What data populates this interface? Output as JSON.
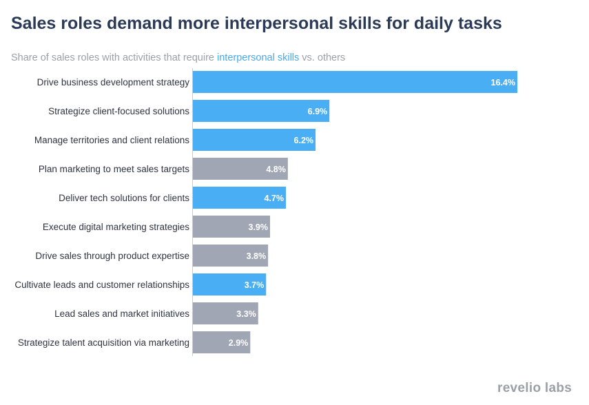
{
  "header": {
    "title": "Sales roles demand more interpersonal skills for daily tasks",
    "subtitle_prefix": "Share of sales roles with activities that require ",
    "subtitle_highlight": "interpersonal skills",
    "subtitle_middle": " vs. ",
    "subtitle_suffix": "others"
  },
  "brand": {
    "logo_text": "revelio labs"
  },
  "colors": {
    "interpersonal": "#4aaef5",
    "others": "#a1a6b4",
    "title": "#2b3a57",
    "highlight": "#4aa8f0"
  },
  "chart_data": {
    "type": "bar",
    "orientation": "horizontal",
    "categories": [
      "Drive business development strategy",
      "Strategize client-focused solutions",
      "Manage territories and client relations",
      "Plan marketing to meet sales targets",
      "Deliver tech solutions for clients",
      "Execute digital marketing strategies",
      "Drive sales through product expertise",
      "Cultivate leads and customer relationships",
      "Lead sales and market initiatives",
      "Strategize talent acquisition via marketing"
    ],
    "values": [
      16.4,
      6.9,
      6.2,
      4.8,
      4.7,
      3.9,
      3.8,
      3.7,
      3.3,
      2.9
    ],
    "value_labels": [
      "16.4%",
      "6.9%",
      "6.2%",
      "4.8%",
      "4.7%",
      "3.9%",
      "3.8%",
      "3.7%",
      "3.3%",
      "2.9%"
    ],
    "groups": [
      "interpersonal",
      "interpersonal",
      "interpersonal",
      "others",
      "interpersonal",
      "others",
      "others",
      "interpersonal",
      "others",
      "others"
    ],
    "xlim": [
      0,
      16.4
    ],
    "grid": false,
    "legend": "embedded in subtitle"
  }
}
